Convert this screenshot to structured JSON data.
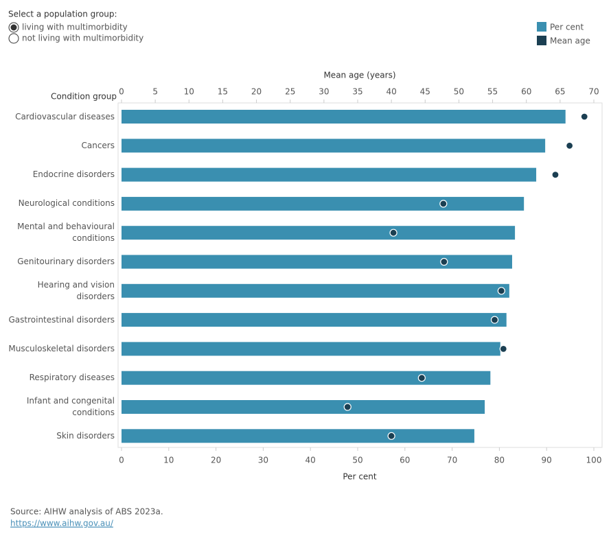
{
  "controls": {
    "label": "Select a population group:",
    "options": [
      "living with multimorbidity",
      "not living with multimorbidity"
    ],
    "selected": 0
  },
  "chart_data": {
    "type": "bar",
    "categories_title": "Condition group",
    "categories": [
      "Cardiovascular diseases",
      "Cancers",
      "Endocrine disorders",
      "Neurological conditions",
      "Mental and behavioural conditions",
      "Genitourinary disorders",
      "Hearing and vision disorders",
      "Gastrointestinal disorders",
      "Musculoskeletal disorders",
      "Respiratory diseases",
      "Infant and congenital conditions",
      "Skin disorders"
    ],
    "series": [
      {
        "name": "Per cent",
        "color": "#3a8fb0",
        "axis": "x",
        "values": [
          94.0,
          89.7,
          87.8,
          85.2,
          83.3,
          82.7,
          82.1,
          81.5,
          80.2,
          78.1,
          76.9,
          74.7
        ]
      },
      {
        "name": "Mean age",
        "color": "#1b3f52",
        "axis": "x2",
        "values": [
          68.6,
          66.4,
          64.3,
          47.7,
          40.3,
          47.8,
          56.3,
          55.3,
          56.6,
          44.5,
          33.5,
          40.0
        ]
      }
    ],
    "xlabel": "Per cent",
    "xlim": [
      0,
      100
    ],
    "xticks": [
      0,
      10,
      20,
      30,
      40,
      50,
      60,
      70,
      80,
      90,
      100
    ],
    "x2label": "Mean age (years)",
    "x2lim": [
      0,
      70
    ],
    "x2ticks": [
      0,
      5,
      10,
      15,
      20,
      25,
      30,
      35,
      40,
      45,
      50,
      55,
      60,
      65,
      70
    ]
  },
  "footer": {
    "source": "Source: AIHW analysis of ABS 2023a.",
    "link": "https://www.aihw.gov.au/"
  }
}
